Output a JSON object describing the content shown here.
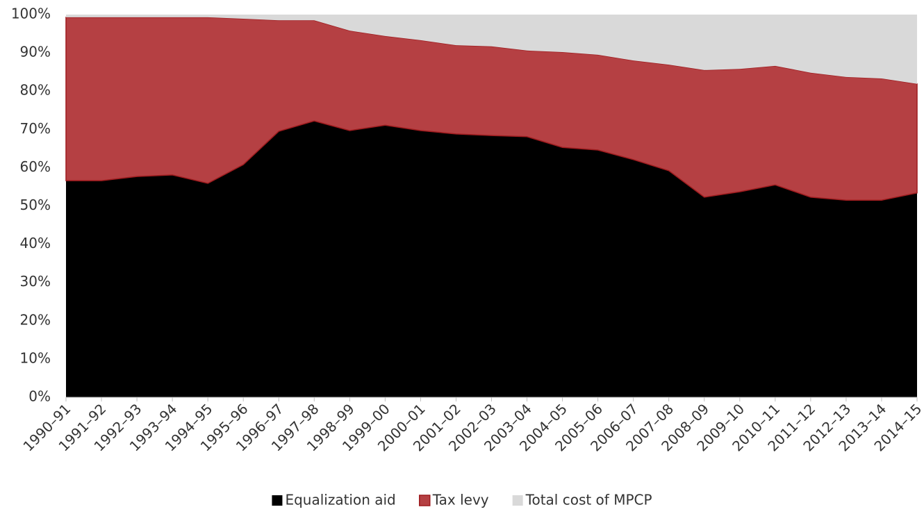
{
  "chart_data": {
    "type": "stacked-area",
    "categories": [
      "1990–91",
      "1991–92",
      "1992–93",
      "1993–94",
      "1994–95",
      "1995–96",
      "1996–97",
      "1997–98",
      "1998–99",
      "1999–00",
      "2000–01",
      "2001–02",
      "2002–03",
      "2003–04",
      "2004–05",
      "2005–06",
      "2006–07",
      "2007–08",
      "2008–09",
      "2009–10",
      "2010–11",
      "2011–12",
      "2012–13",
      "2013–14",
      "2014–15"
    ],
    "series": [
      {
        "name": "Equalization aid",
        "color": "#000000",
        "values": [
          56.6,
          56.6,
          57.7,
          58.1,
          55.9,
          60.8,
          69.5,
          72.2,
          69.7,
          71.1,
          69.7,
          68.8,
          68.4,
          68.1,
          65.3,
          64.6,
          62.1,
          59.2,
          52.3,
          53.7,
          55.5,
          52.3,
          51.5,
          51.5,
          53.4
        ]
      },
      {
        "name": "Tax levy",
        "color": "#b54043",
        "values": [
          42.7,
          42.7,
          41.6,
          41.2,
          43.4,
          38.1,
          29.0,
          26.3,
          26.1,
          23.3,
          23.6,
          23.2,
          23.3,
          22.5,
          24.9,
          24.9,
          25.9,
          27.7,
          33.2,
          32.1,
          31.1,
          32.5,
          32.2,
          31.8,
          28.5
        ]
      },
      {
        "name": "Total cost of MPCP",
        "color": "#d9d9d9",
        "values": [
          0.7,
          0.7,
          0.7,
          0.7,
          0.7,
          1.1,
          1.5,
          1.5,
          4.2,
          5.6,
          6.7,
          8.0,
          8.3,
          9.4,
          9.8,
          10.5,
          12.0,
          13.1,
          14.5,
          14.2,
          13.4,
          15.2,
          16.3,
          16.7,
          18.1
        ]
      }
    ],
    "ylim": [
      0,
      100
    ],
    "yticks": [
      {
        "value": 0,
        "label": "0%"
      },
      {
        "value": 10,
        "label": "10%"
      },
      {
        "value": 20,
        "label": "20%"
      },
      {
        "value": 30,
        "label": "30%"
      },
      {
        "value": 40,
        "label": "40%"
      },
      {
        "value": 50,
        "label": "50%"
      },
      {
        "value": 60,
        "label": "60%"
      },
      {
        "value": 70,
        "label": "70%"
      },
      {
        "value": 80,
        "label": "80%"
      },
      {
        "value": 90,
        "label": "90%"
      },
      {
        "value": 100,
        "label": "100%"
      }
    ],
    "grid": false,
    "legend": "bottom"
  }
}
